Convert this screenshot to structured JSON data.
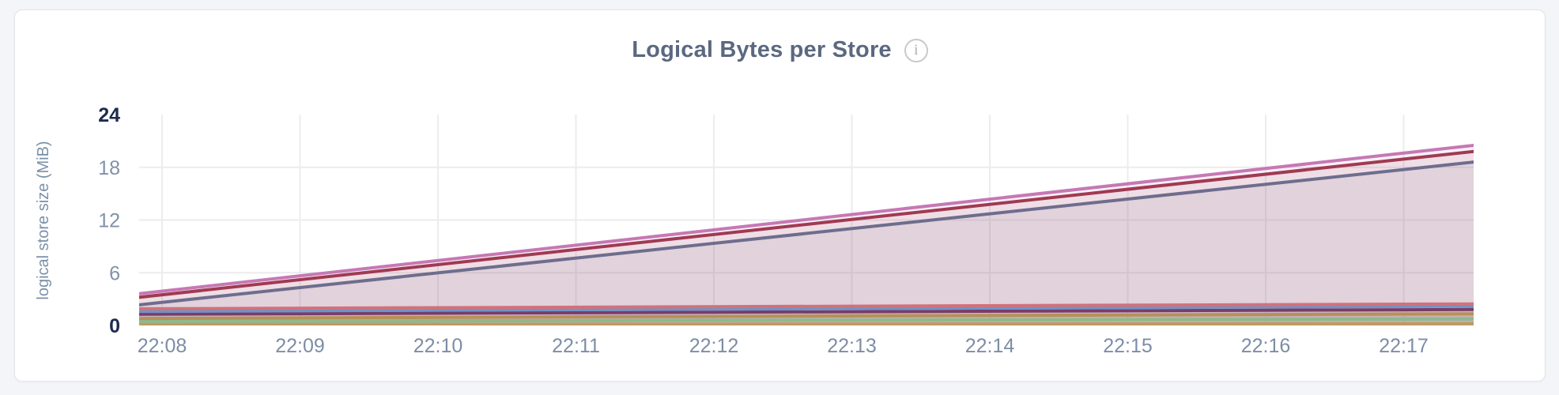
{
  "page": {
    "background": "#f4f5f9",
    "card_background": "#ffffff",
    "card_border": "#e4e4e7"
  },
  "header": {
    "title": "Logical Bytes per Store",
    "info_icon_glyph": "i"
  },
  "colors": {
    "title_text": "#5b6880",
    "axis_label": "#7a90a8",
    "tick_text": "#8191a9",
    "tick_text_strong": "#1e2b4e",
    "x_tick_text": "#7d8da6",
    "grid_line": "#ececef"
  },
  "chart_data": {
    "type": "line",
    "title": "Logical Bytes per Store",
    "xlabel": "",
    "ylabel": "logical store size (MiB)",
    "ylim": [
      0,
      24
    ],
    "y_ticks": [
      0,
      6,
      12,
      18,
      24
    ],
    "x_ticks": [
      "22:08",
      "22:09",
      "22:10",
      "22:11",
      "22:12",
      "22:13",
      "22:14",
      "22:15",
      "22:16",
      "22:17"
    ],
    "x_minutes_range": [
      -0.17,
      9.51
    ],
    "grid": "on",
    "legend": "none",
    "area_fill_opacity": 0.1,
    "series": [
      {
        "id": "series-1",
        "color": "#c678b4",
        "points": [
          [
            -0.17,
            3.6
          ],
          [
            9.51,
            20.5
          ]
        ]
      },
      {
        "id": "series-2",
        "color": "#a03a52",
        "points": [
          [
            -0.17,
            3.2
          ],
          [
            9.51,
            19.8
          ]
        ]
      },
      {
        "id": "series-3",
        "color": "#6e6d8e",
        "points": [
          [
            -0.17,
            2.35
          ],
          [
            9.51,
            18.6
          ]
        ]
      },
      {
        "id": "series-4",
        "color": "#d2717b",
        "points": [
          [
            -0.17,
            1.9
          ],
          [
            9.51,
            2.45
          ]
        ]
      },
      {
        "id": "series-5",
        "color": "#6e94c6",
        "points": [
          [
            -0.17,
            1.6
          ],
          [
            9.51,
            2.2
          ]
        ]
      },
      {
        "id": "series-6",
        "color": "#7a3c68",
        "points": [
          [
            -0.17,
            1.28
          ],
          [
            9.51,
            1.82
          ]
        ]
      },
      {
        "id": "series-7",
        "color": "#b69157",
        "points": [
          [
            -0.17,
            0.8
          ],
          [
            9.51,
            1.33
          ]
        ]
      },
      {
        "id": "series-8",
        "color": "#8eb98c",
        "points": [
          [
            -0.17,
            0.46
          ],
          [
            9.51,
            0.75
          ]
        ]
      },
      {
        "id": "series-9",
        "color": "#c19a60",
        "points": [
          [
            -0.17,
            0.12
          ],
          [
            9.51,
            0.2
          ]
        ]
      }
    ]
  }
}
